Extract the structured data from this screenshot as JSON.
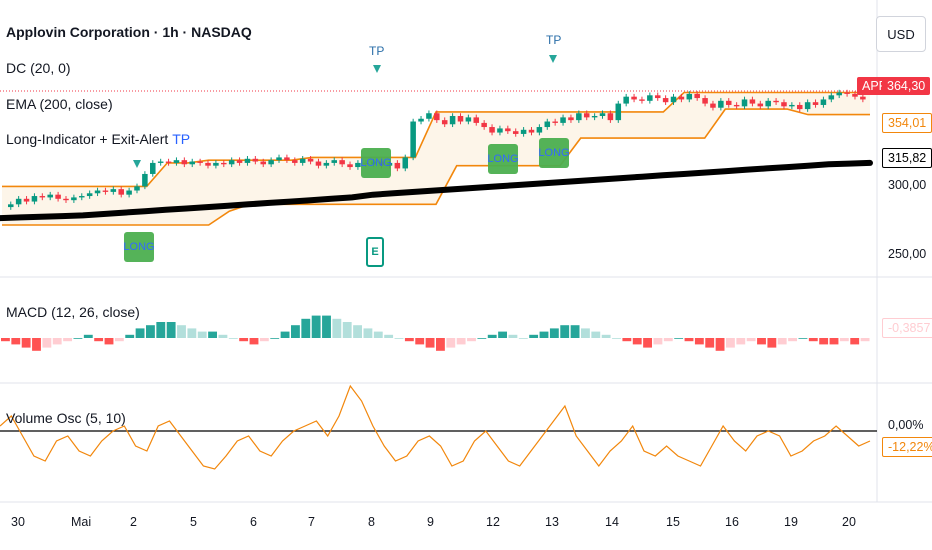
{
  "header": {
    "symbol_title": "Applovin Corporation · 1h · NASDAQ",
    "dc_label": "DC (20, 0)",
    "ema_label": "EMA (200, close)",
    "indicator_label": "Long-Indicator + Exit-Alert",
    "indicator_tp": "TP",
    "macd_label": "MACD (12, 26, close)",
    "vo_label": "Volume Osc (5, 10)"
  },
  "currency_button": "USD",
  "price_tags": {
    "symbol_tag": "APP",
    "last_price": "364,30",
    "dc_upper": "354,01",
    "ema_value": "315,82",
    "macd_value": "-0,3857",
    "vo_value": "-12,22%"
  },
  "price_axis": [
    "300,00",
    "250,00"
  ],
  "vo_axis": [
    "0,00%"
  ],
  "time_axis": [
    "30",
    "Mai",
    "2",
    "5",
    "6",
    "7",
    "8",
    "9",
    "12",
    "13",
    "14",
    "15",
    "16",
    "19",
    "20"
  ],
  "signals": {
    "tp_label": "TP",
    "long_label": "LONG",
    "exit_label": "E"
  },
  "colors": {
    "up": "#089981",
    "down": "#f23645",
    "ema": "#000000",
    "channel": "#f2870c",
    "macd_up_strong": "#26a69a",
    "macd_up_weak": "#b2dfdb",
    "macd_down_strong": "#ff5252",
    "macd_down_weak": "#ffcdd2",
    "vo_line": "#f2870c",
    "long_box": "#4caf50"
  },
  "chart_data": [
    {
      "type": "candlestick",
      "title": "Applovin Corporation · 1h · NASDAQ",
      "ylim": [
        230,
        395
      ],
      "close_series": [
        286,
        290,
        288,
        292,
        291,
        293,
        290,
        289,
        291,
        292,
        294,
        296,
        295,
        297,
        293,
        296,
        299,
        308,
        316,
        317,
        316,
        318,
        315,
        317,
        316,
        314,
        316,
        315,
        318,
        316,
        319,
        317,
        315,
        318,
        320,
        318,
        316,
        319,
        317,
        314,
        316,
        318,
        315,
        313,
        316,
        315,
        317,
        314,
        316,
        312,
        320,
        346,
        348,
        352,
        347,
        344,
        350,
        346,
        349,
        345,
        342,
        338,
        341,
        339,
        337,
        340,
        338,
        342,
        346,
        345,
        349,
        347,
        352,
        349,
        350,
        352,
        347,
        359,
        364,
        362,
        361,
        365,
        363,
        360,
        364,
        362,
        366,
        363,
        359,
        356,
        361,
        358,
        357,
        362,
        359,
        357,
        361,
        360,
        357,
        358,
        355,
        360,
        358,
        362,
        365,
        367,
        366,
        364,
        362
      ],
      "ema_200": [
        276,
        276.5,
        277,
        277.5,
        278,
        279,
        280,
        281,
        282,
        283,
        284,
        285,
        286,
        287,
        288,
        289,
        290,
        291,
        293,
        294,
        295,
        296,
        297,
        298,
        299,
        300,
        301,
        302,
        303,
        304,
        305,
        306,
        307,
        308,
        309,
        310,
        311,
        312,
        313,
        314,
        315,
        315.5,
        316
      ],
      "dc_upper": [
        299,
        299,
        299,
        299,
        299,
        299,
        299,
        299,
        316,
        316,
        318,
        318,
        318,
        318,
        318,
        320,
        320,
        320,
        320,
        320,
        320,
        353,
        353,
        353,
        353,
        353,
        353,
        353,
        353,
        353,
        353,
        353,
        353,
        367,
        367,
        367,
        367,
        367,
        367,
        367,
        367,
        367,
        367
      ],
      "dc_lower": [
        271,
        271,
        271,
        271,
        271,
        271,
        271,
        271,
        271,
        271,
        271,
        281,
        286,
        286,
        286,
        286,
        286,
        286,
        286,
        286,
        286,
        286,
        314,
        314,
        314,
        314,
        314,
        314,
        334,
        334,
        334,
        334,
        334,
        334,
        334,
        355,
        355,
        355,
        355,
        351,
        351,
        351,
        351
      ],
      "macd_histogram": [
        -1,
        -2,
        -3,
        -4,
        -3,
        -2,
        -1,
        0,
        1,
        -1,
        -2,
        -1,
        1,
        3,
        4,
        5,
        5,
        4,
        3,
        2,
        2,
        1,
        0,
        -1,
        -2,
        -1,
        0,
        2,
        4,
        6,
        7,
        7,
        6,
        5,
        4,
        3,
        2,
        1,
        0,
        -1,
        -2,
        -3,
        -4,
        -3,
        -2,
        -1,
        0,
        1,
        2,
        1,
        0,
        1,
        2,
        3,
        4,
        4,
        3,
        2,
        1,
        0,
        -1,
        -2,
        -3,
        -2,
        -1,
        0,
        -1,
        -2,
        -3,
        -4,
        -3,
        -2,
        -1,
        -2,
        -3,
        -2,
        -1,
        0,
        -1,
        -2,
        -2,
        -1,
        -2,
        -1
      ],
      "volume_osc": [
        5,
        15,
        -5,
        -25,
        -30,
        -10,
        -5,
        -20,
        -25,
        -10,
        0,
        5,
        -15,
        -20,
        5,
        10,
        -5,
        -20,
        -35,
        -38,
        -25,
        -10,
        -5,
        -20,
        -25,
        -10,
        0,
        5,
        10,
        -5,
        15,
        45,
        30,
        5,
        -15,
        -30,
        -25,
        -10,
        -5,
        -15,
        -35,
        -30,
        -10,
        0,
        -15,
        -30,
        -35,
        -20,
        -5,
        10,
        25,
        -5,
        -20,
        -35,
        -20,
        -10,
        5,
        -20,
        -25,
        -15,
        -25,
        -30,
        -35,
        -15,
        5,
        -10,
        -20,
        -5,
        0,
        -5,
        -25,
        -20,
        -10,
        -5,
        5,
        -5,
        -15,
        -10
      ],
      "markers": {
        "tp": [
          "8",
          "13"
        ],
        "long": [
          "2",
          "8",
          "12",
          "13"
        ],
        "exit": [
          "8"
        ]
      }
    }
  ]
}
